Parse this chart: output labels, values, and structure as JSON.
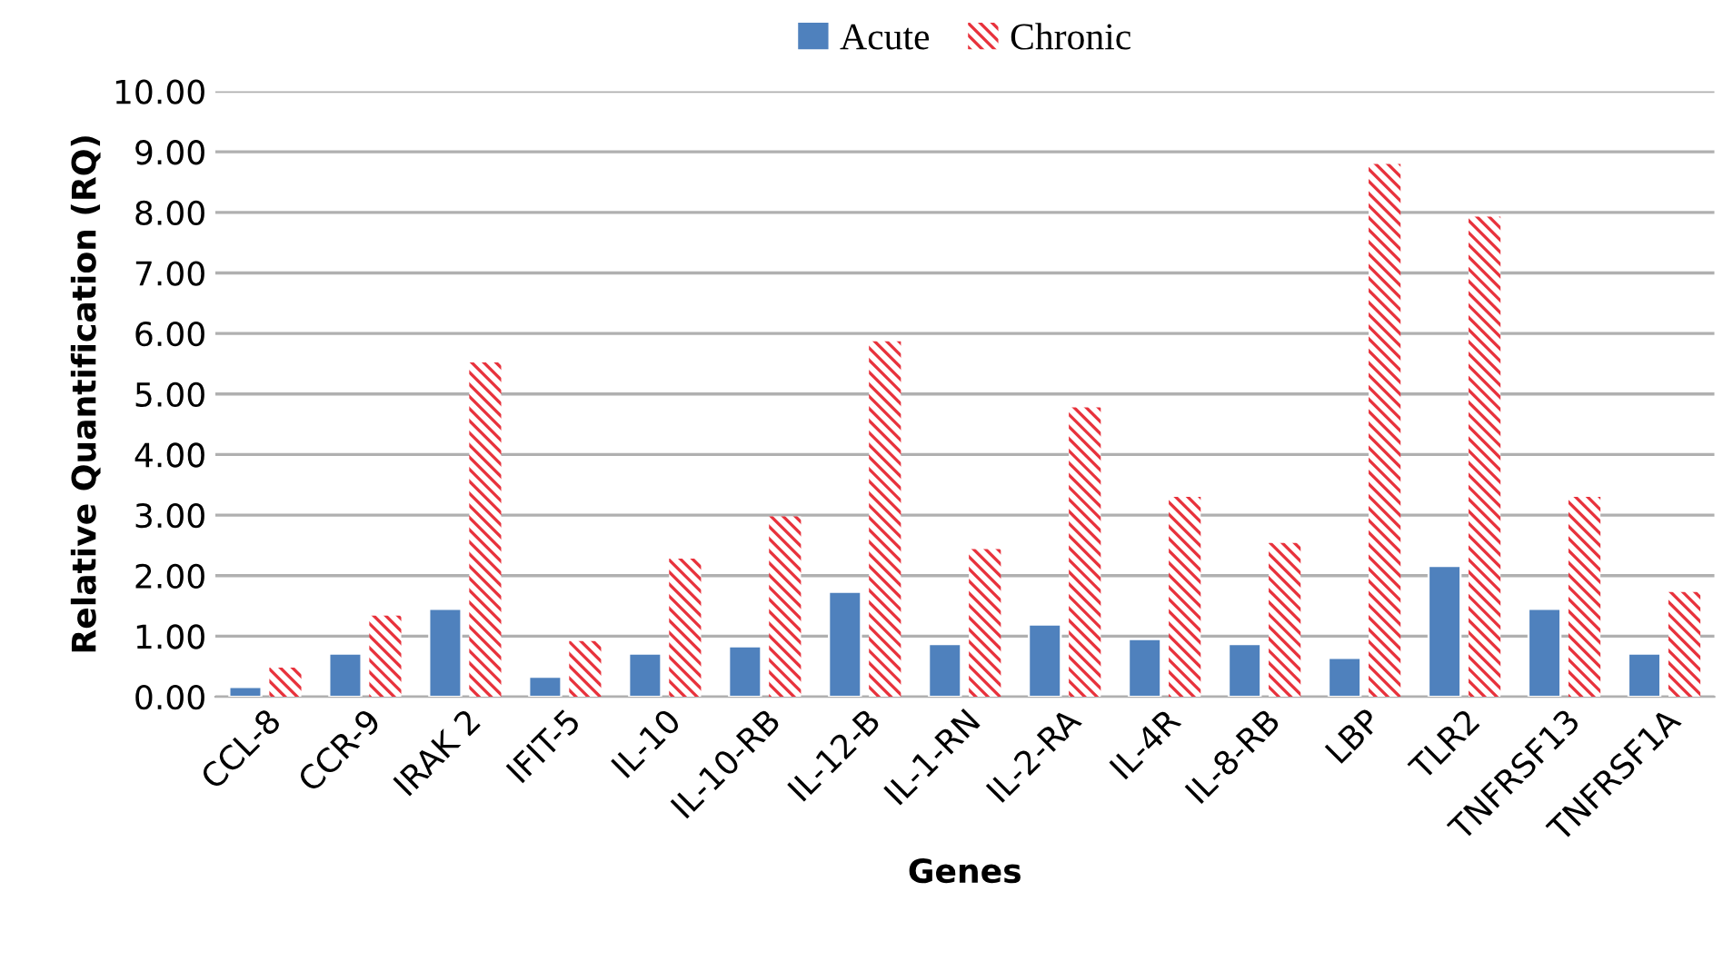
{
  "chart_data": {
    "type": "bar",
    "xlabel": "Genes",
    "ylabel": "Relative Quantification (RQ)",
    "categories": [
      "CCL-8",
      "CCR-9",
      "IRAK 2",
      "IFIT-5",
      "IL-10",
      "IL-10-RB",
      "IL-12-B",
      "IL-1-RN",
      "IL-2-RA",
      "IL-4R",
      "IL-8-RB",
      "LBP",
      "TLR2",
      "TNFRSF13",
      "TNFRSF1A"
    ],
    "series": [
      {
        "name": "Acute",
        "color": "#4f81bd",
        "values": [
          0.16,
          0.71,
          1.45,
          0.33,
          0.71,
          0.83,
          1.73,
          0.87,
          1.19,
          0.95,
          0.87,
          0.64,
          2.16,
          1.45,
          0.71
        ]
      },
      {
        "name": "Chronic",
        "color": "#e8323c",
        "values": [
          0.48,
          1.34,
          5.52,
          0.92,
          2.28,
          2.98,
          5.87,
          2.44,
          4.78,
          3.3,
          2.54,
          8.8,
          7.93,
          3.3,
          1.73
        ]
      }
    ],
    "ylim": [
      0,
      10
    ],
    "yticks": [
      {
        "value": 0,
        "label": "0.00"
      },
      {
        "value": 1,
        "label": "1.00"
      },
      {
        "value": 2,
        "label": "2.00"
      },
      {
        "value": 3,
        "label": "3.00"
      },
      {
        "value": 4,
        "label": "4.00"
      },
      {
        "value": 5,
        "label": "5.00"
      },
      {
        "value": 6,
        "label": "6.00"
      },
      {
        "value": 7,
        "label": "7.00"
      },
      {
        "value": 8,
        "label": "8.00"
      },
      {
        "value": 9,
        "label": "9.00"
      },
      {
        "value": 10,
        "label": "10.00"
      }
    ],
    "grid": "y",
    "legend": "top"
  }
}
